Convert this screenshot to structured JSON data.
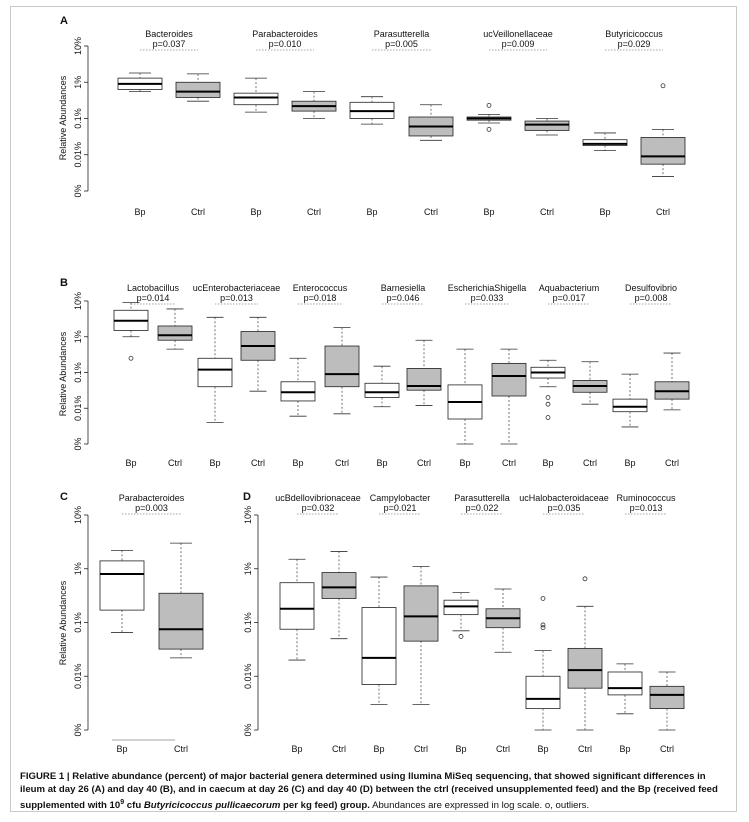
{
  "caption": {
    "label": "FIGURE 1 |",
    "bold_before": "Relative abundance (percent) of major bacterial genera determined using Ilumina MiSeq sequencing, that showed significant differences in ileum at day 26 (A) and day 40 (B), and in caecum at day 26 (C) and day 40 (D) between the ctrl (received unsupplemented feed) and the Bp (received feed supplemented with 10",
    "sup": "9",
    "bold_mid": " cfu ",
    "species": "Butyricicoccus pullicaecorum",
    "bold_after": " per kg feed) group.",
    "rest": " Abundances are expressed in log scale. o, outliers."
  },
  "chart_data": [
    {
      "panel": "A",
      "type": "box",
      "ylabel": "Relative Abundances",
      "scale": "log",
      "tick_labels": [
        "10%",
        "1%",
        "0.1%",
        "0.01%",
        "0%"
      ],
      "groups": [
        {
          "genus": "Bacteroides",
          "p": "p=0.037",
          "boxes": [
            {
              "label": "Bp",
              "fill": "#ffffff",
              "whisker_low": 0.55,
              "q1": 0.63,
              "median": 0.9,
              "q3": 1.3,
              "whisker_high": 1.8,
              "outliers": []
            },
            {
              "label": "Ctrl",
              "fill": "#bdbdbd",
              "whisker_low": 0.3,
              "q1": 0.38,
              "median": 0.55,
              "q3": 1.0,
              "whisker_high": 1.7,
              "outliers": []
            }
          ]
        },
        {
          "genus": "Parabacteroides",
          "p": "p=0.010",
          "boxes": [
            {
              "label": "Bp",
              "fill": "#ffffff",
              "whisker_low": 0.15,
              "q1": 0.24,
              "median": 0.38,
              "q3": 0.5,
              "whisker_high": 1.3,
              "outliers": []
            },
            {
              "label": "Ctrl",
              "fill": "#bdbdbd",
              "whisker_low": 0.1,
              "q1": 0.16,
              "median": 0.22,
              "q3": 0.3,
              "whisker_high": 0.55,
              "outliers": []
            }
          ]
        },
        {
          "genus": "Parasutterella",
          "p": "p=0.005",
          "boxes": [
            {
              "label": "Bp",
              "fill": "#ffffff",
              "whisker_low": 0.07,
              "q1": 0.1,
              "median": 0.16,
              "q3": 0.28,
              "whisker_high": 0.4,
              "outliers": []
            },
            {
              "label": "Ctrl",
              "fill": "#bdbdbd",
              "whisker_low": 0.025,
              "q1": 0.033,
              "median": 0.06,
              "q3": 0.11,
              "whisker_high": 0.24,
              "outliers": []
            }
          ]
        },
        {
          "genus": "ucVeillonellaceae",
          "p": "p=0.009",
          "boxes": [
            {
              "label": "Bp",
              "fill": "#ffffff",
              "whisker_low": 0.075,
              "q1": 0.09,
              "median": 0.1,
              "q3": 0.11,
              "whisker_high": 0.13,
              "outliers": [
                0.05,
                0.23
              ]
            },
            {
              "label": "Ctrl",
              "fill": "#bdbdbd",
              "whisker_low": 0.035,
              "q1": 0.047,
              "median": 0.068,
              "q3": 0.085,
              "whisker_high": 0.1,
              "outliers": []
            }
          ]
        },
        {
          "genus": "Butyricicoccus",
          "p": "p=0.029",
          "boxes": [
            {
              "label": "Bp",
              "fill": "#ffffff",
              "whisker_low": 0.013,
              "q1": 0.018,
              "median": 0.02,
              "q3": 0.026,
              "whisker_high": 0.04,
              "outliers": []
            },
            {
              "label": "Ctrl",
              "fill": "#bdbdbd",
              "whisker_low": 0.0025,
              "q1": 0.0055,
              "median": 0.009,
              "q3": 0.03,
              "whisker_high": 0.05,
              "outliers": [
                0.8
              ]
            }
          ]
        }
      ]
    },
    {
      "panel": "B",
      "type": "box",
      "ylabel": "Relative Abundances",
      "scale": "log",
      "tick_labels": [
        "10%",
        "1%",
        "0.1%",
        "0.01%",
        "0%"
      ],
      "groups": [
        {
          "genus": "Lactobacillus",
          "p": "p=0.014",
          "boxes": [
            {
              "label": "Bp",
              "fill": "#ffffff",
              "whisker_low": 1.0,
              "q1": 1.5,
              "median": 2.8,
              "q3": 5.5,
              "whisker_high": 9.0,
              "outliers": [
                0.25
              ]
            },
            {
              "label": "Ctrl",
              "fill": "#bdbdbd",
              "whisker_low": 0.45,
              "q1": 0.8,
              "median": 1.1,
              "q3": 2.0,
              "whisker_high": 6.0,
              "outliers": []
            }
          ]
        },
        {
          "genus": "ucEnterobacteriaceae",
          "p": "p=0.013",
          "boxes": [
            {
              "label": "Bp",
              "fill": "#ffffff",
              "whisker_low": 0.004,
              "q1": 0.04,
              "median": 0.12,
              "q3": 0.25,
              "whisker_high": 3.5,
              "outliers": []
            },
            {
              "label": "Ctrl",
              "fill": "#bdbdbd",
              "whisker_low": 0.03,
              "q1": 0.22,
              "median": 0.55,
              "q3": 1.4,
              "whisker_high": 3.5,
              "outliers": []
            }
          ]
        },
        {
          "genus": "Enterococcus",
          "p": "p=0.018",
          "boxes": [
            {
              "label": "Bp",
              "fill": "#ffffff",
              "whisker_low": 0.006,
              "q1": 0.016,
              "median": 0.028,
              "q3": 0.055,
              "whisker_high": 0.25,
              "outliers": []
            },
            {
              "label": "Ctrl",
              "fill": "#bdbdbd",
              "whisker_low": 0.007,
              "q1": 0.04,
              "median": 0.09,
              "q3": 0.55,
              "whisker_high": 1.8,
              "outliers": []
            }
          ]
        },
        {
          "genus": "Barnesiella",
          "p": "p=0.046",
          "boxes": [
            {
              "label": "Bp",
              "fill": "#ffffff",
              "whisker_low": 0.011,
              "q1": 0.02,
              "median": 0.028,
              "q3": 0.05,
              "whisker_high": 0.15,
              "outliers": []
            },
            {
              "label": "Ctrl",
              "fill": "#bdbdbd",
              "whisker_low": 0.012,
              "q1": 0.032,
              "median": 0.042,
              "q3": 0.13,
              "whisker_high": 0.8,
              "outliers": []
            }
          ]
        },
        {
          "genus": "EscherichiaShigella",
          "p": "p=0.033",
          "boxes": [
            {
              "label": "Bp",
              "fill": "#ffffff",
              "whisker_low": 0.001,
              "q1": 0.005,
              "median": 0.015,
              "q3": 0.045,
              "whisker_high": 0.45,
              "outliers": []
            },
            {
              "label": "Ctrl",
              "fill": "#bdbdbd",
              "whisker_low": 0.001,
              "q1": 0.022,
              "median": 0.08,
              "q3": 0.18,
              "whisker_high": 0.45,
              "outliers": []
            }
          ]
        },
        {
          "genus": "Aquabacterium",
          "p": "p=0.017",
          "boxes": [
            {
              "label": "Bp",
              "fill": "#ffffff",
              "whisker_low": 0.04,
              "q1": 0.07,
              "median": 0.1,
              "q3": 0.14,
              "whisker_high": 0.22,
              "outliers": [
                0.02,
                0.013,
                0.0055
              ]
            },
            {
              "label": "Ctrl",
              "fill": "#bdbdbd",
              "whisker_low": 0.013,
              "q1": 0.028,
              "median": 0.042,
              "q3": 0.06,
              "whisker_high": 0.2,
              "outliers": []
            }
          ]
        },
        {
          "genus": "Desulfovibrio",
          "p": "p=0.008",
          "boxes": [
            {
              "label": "Bp",
              "fill": "#ffffff",
              "whisker_low": 0.003,
              "q1": 0.008,
              "median": 0.011,
              "q3": 0.018,
              "whisker_high": 0.09,
              "outliers": []
            },
            {
              "label": "Ctrl",
              "fill": "#bdbdbd",
              "whisker_low": 0.009,
              "q1": 0.018,
              "median": 0.03,
              "q3": 0.055,
              "whisker_high": 0.35,
              "outliers": []
            }
          ]
        }
      ]
    },
    {
      "panel": "C",
      "type": "box",
      "ylabel": "Relative Abundances",
      "scale": "log",
      "tick_labels": [
        "10%",
        "1%",
        "0.1%",
        "0.01%",
        "0%"
      ],
      "groups": [
        {
          "genus": "Parabacteroides",
          "p": "p=0.003",
          "boxes": [
            {
              "label": "Bp",
              "fill": "#ffffff",
              "whisker_low": 0.065,
              "q1": 0.17,
              "median": 0.8,
              "q3": 1.4,
              "whisker_high": 2.2,
              "outliers": []
            },
            {
              "label": "Ctrl",
              "fill": "#bdbdbd",
              "whisker_low": 0.022,
              "q1": 0.032,
              "median": 0.075,
              "q3": 0.35,
              "whisker_high": 3.0,
              "outliers": []
            }
          ]
        }
      ]
    },
    {
      "panel": "D",
      "type": "box",
      "scale": "log",
      "tick_labels": [
        "10%",
        "1%",
        "0.1%",
        "0.01%",
        "0%"
      ],
      "groups": [
        {
          "genus": "ucBdellovibrionaceae",
          "p": "p=0.032",
          "boxes": [
            {
              "label": "Bp",
              "fill": "#ffffff",
              "whisker_low": 0.02,
              "q1": 0.075,
              "median": 0.18,
              "q3": 0.55,
              "whisker_high": 1.5,
              "outliers": []
            },
            {
              "label": "Ctrl",
              "fill": "#bdbdbd",
              "whisker_low": 0.05,
              "q1": 0.28,
              "median": 0.45,
              "q3": 0.85,
              "whisker_high": 2.1,
              "outliers": []
            }
          ]
        },
        {
          "genus": "Campylobacter",
          "p": "p=0.021",
          "boxes": [
            {
              "label": "Bp",
              "fill": "#ffffff",
              "whisker_low": 0.003,
              "q1": 0.007,
              "median": 0.022,
              "q3": 0.19,
              "whisker_high": 0.7,
              "outliers": []
            },
            {
              "label": "Ctrl",
              "fill": "#bdbdbd",
              "whisker_low": 0.003,
              "q1": 0.045,
              "median": 0.13,
              "q3": 0.48,
              "whisker_high": 1.1,
              "outliers": []
            }
          ]
        },
        {
          "genus": "Parasutterella",
          "p": "p=0.022",
          "boxes": [
            {
              "label": "Bp",
              "fill": "#ffffff",
              "whisker_low": 0.07,
              "q1": 0.14,
              "median": 0.2,
              "q3": 0.26,
              "whisker_high": 0.36,
              "outliers": [
                0.055
              ]
            },
            {
              "label": "Ctrl",
              "fill": "#bdbdbd",
              "whisker_low": 0.028,
              "q1": 0.08,
              "median": 0.12,
              "q3": 0.18,
              "whisker_high": 0.42,
              "outliers": []
            }
          ]
        },
        {
          "genus": "ucHalobacteroidaceae",
          "p": "p=0.035",
          "boxes": [
            {
              "label": "Bp",
              "fill": "#ffffff",
              "whisker_low": 0.001,
              "q1": 0.0025,
              "median": 0.0038,
              "q3": 0.01,
              "whisker_high": 0.03,
              "outliers": [
                0.09,
                0.08,
                0.28
              ]
            },
            {
              "label": "Ctrl",
              "fill": "#bdbdbd",
              "whisker_low": 0.001,
              "q1": 0.006,
              "median": 0.013,
              "q3": 0.033,
              "whisker_high": 0.2,
              "outliers": [
                0.65
              ]
            }
          ]
        },
        {
          "genus": "Ruminococcus",
          "p": "p=0.013",
          "boxes": [
            {
              "label": "Bp",
              "fill": "#ffffff",
              "whisker_low": 0.002,
              "q1": 0.0045,
              "median": 0.006,
              "q3": 0.012,
              "whisker_high": 0.017,
              "outliers": []
            },
            {
              "label": "Ctrl",
              "fill": "#bdbdbd",
              "whisker_low": 0.001,
              "q1": 0.0025,
              "median": 0.0045,
              "q3": 0.0065,
              "whisker_high": 0.012,
              "outliers": []
            }
          ]
        }
      ]
    }
  ]
}
